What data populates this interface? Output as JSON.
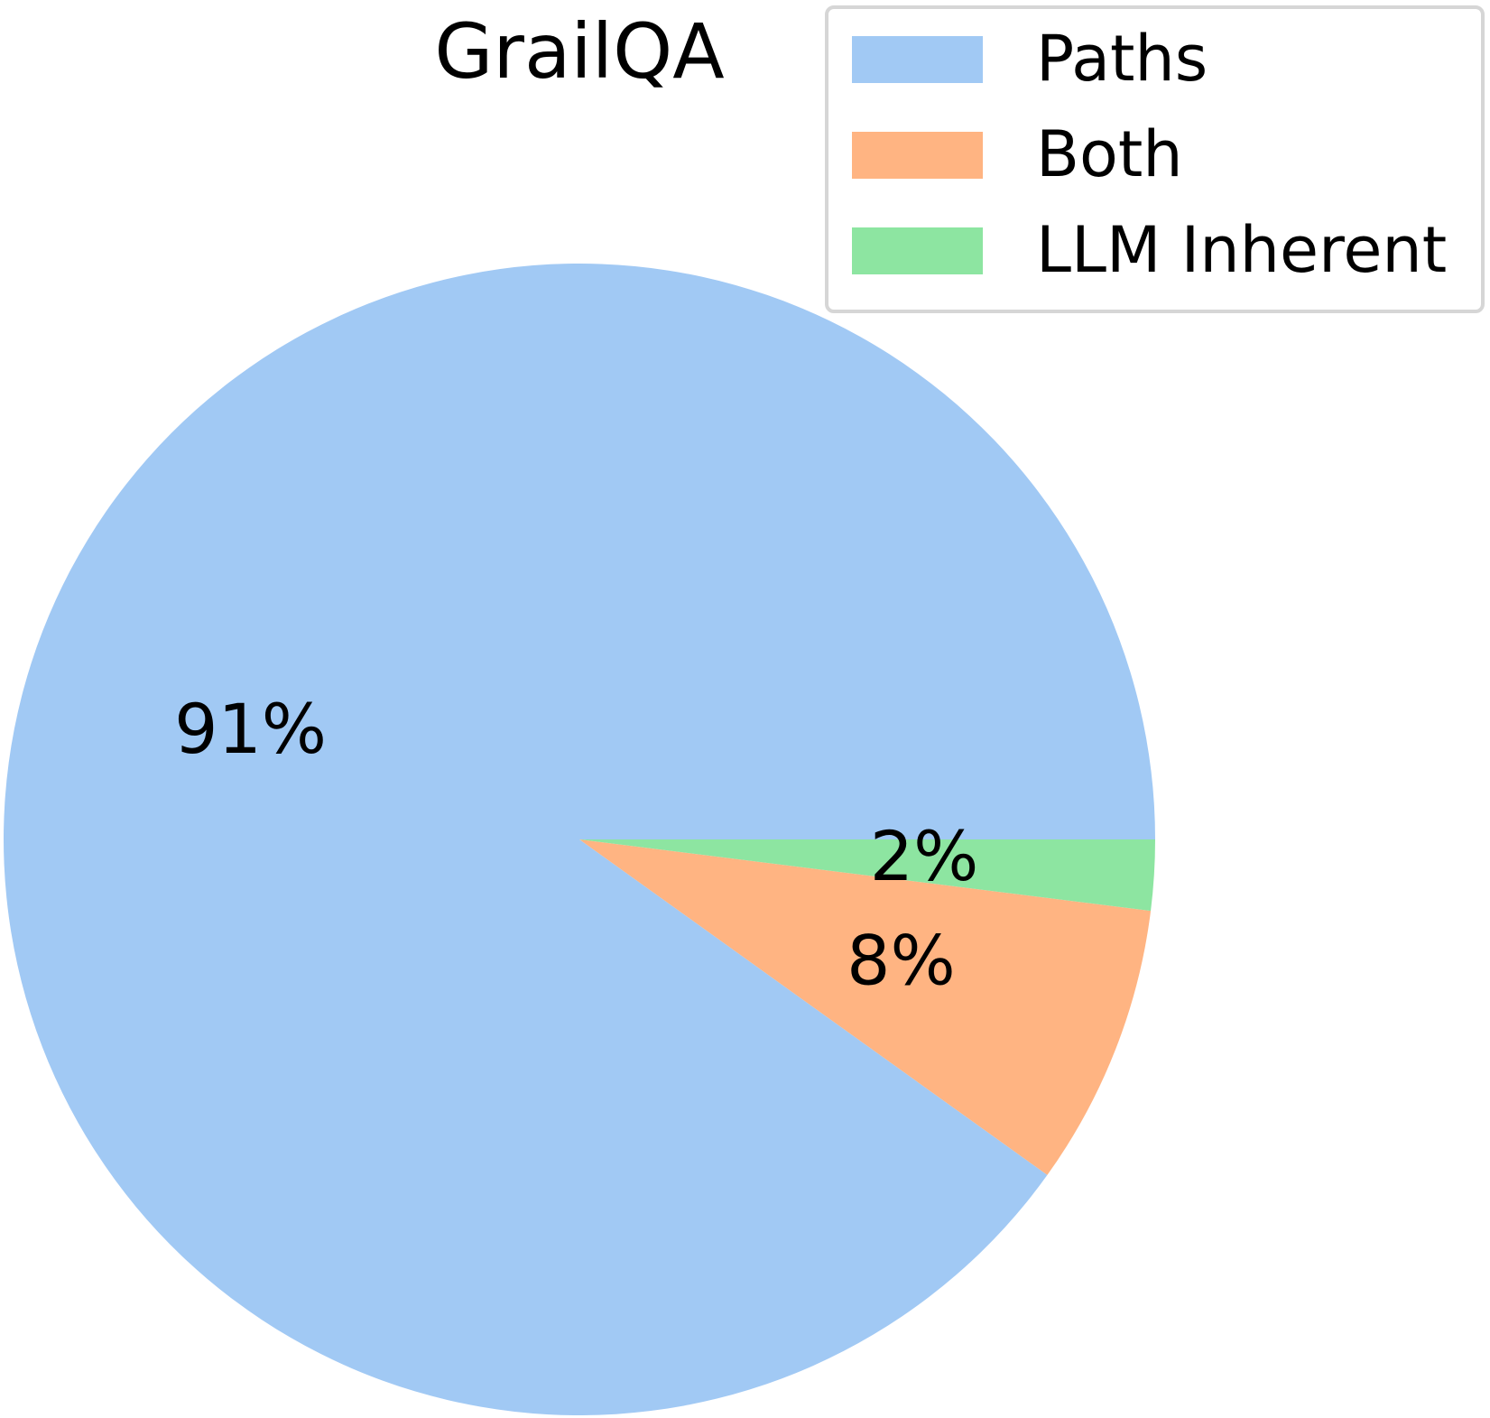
{
  "chart_data": {
    "type": "pie",
    "title": "GrailQA",
    "categories": [
      "Paths",
      "Both",
      "LLM Inherent"
    ],
    "values": [
      91,
      8,
      2
    ],
    "value_labels": [
      "91%",
      "8%",
      "2%"
    ],
    "colors": [
      "#a1c9f4",
      "#ffb482",
      "#8de5a1"
    ],
    "legend": "upper right"
  }
}
